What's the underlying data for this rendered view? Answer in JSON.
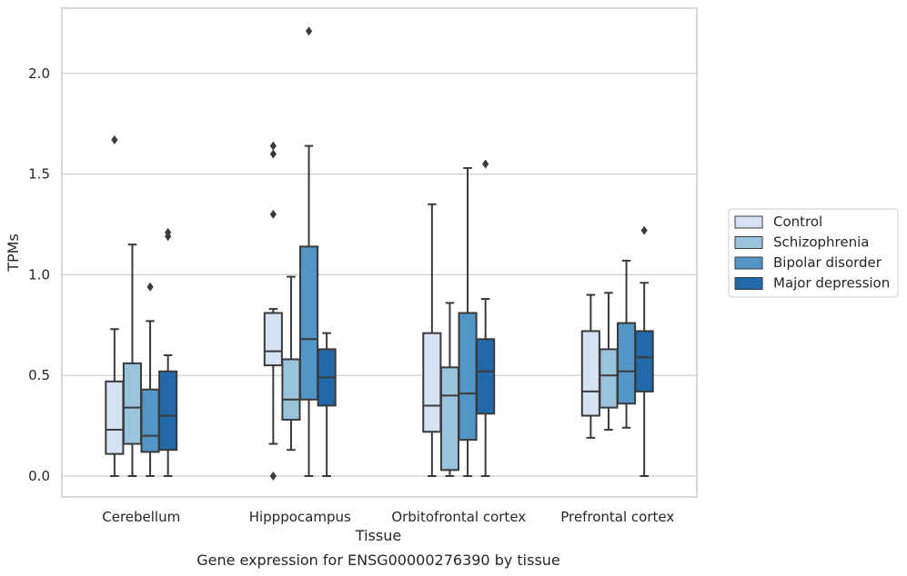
{
  "chart_data": {
    "type": "boxplot",
    "title": "",
    "xlabel": "Tissue",
    "ylabel": "TPMs",
    "caption": "Gene expression for ENSG00000276390 by tissue",
    "ylim": [
      -0.11,
      2.34
    ],
    "yticks": [
      "0.0",
      "0.5",
      "1.0",
      "1.5",
      "2.0"
    ],
    "grid": "horizontal",
    "legend_position": "right",
    "categories": [
      "Cerebellum",
      "Hipppocampus",
      "Orbitofrontal cortex",
      "Prefrontal cortex"
    ],
    "series": [
      {
        "name": "Control",
        "color": "#d4e2f1",
        "boxes": [
          {
            "whislo": 0.0,
            "q1": 0.11,
            "med": 0.23,
            "q3": 0.47,
            "whishi": 0.73,
            "fliers": [
              1.67
            ]
          },
          {
            "whislo": 0.16,
            "q1": 0.55,
            "med": 0.62,
            "q3": 0.81,
            "whishi": 0.83,
            "fliers": [
              0.0,
              1.3,
              1.6,
              1.64
            ]
          },
          {
            "whislo": 0.0,
            "q1": 0.22,
            "med": 0.35,
            "q3": 0.71,
            "whishi": 1.35,
            "fliers": []
          },
          {
            "whislo": 0.19,
            "q1": 0.3,
            "med": 0.42,
            "q3": 0.72,
            "whishi": 0.9,
            "fliers": []
          }
        ]
      },
      {
        "name": "Schizophrenia",
        "color": "#9ac3dc",
        "boxes": [
          {
            "whislo": 0.0,
            "q1": 0.16,
            "med": 0.34,
            "q3": 0.56,
            "whishi": 1.15,
            "fliers": []
          },
          {
            "whislo": 0.13,
            "q1": 0.28,
            "med": 0.38,
            "q3": 0.58,
            "whishi": 0.99,
            "fliers": []
          },
          {
            "whislo": 0.0,
            "q1": 0.03,
            "med": 0.4,
            "q3": 0.54,
            "whishi": 0.86,
            "fliers": []
          },
          {
            "whislo": 0.23,
            "q1": 0.34,
            "med": 0.5,
            "q3": 0.63,
            "whishi": 0.91,
            "fliers": []
          }
        ]
      },
      {
        "name": "Bipolar disorder",
        "color": "#5395c5",
        "boxes": [
          {
            "whislo": 0.0,
            "q1": 0.12,
            "med": 0.2,
            "q3": 0.43,
            "whishi": 0.77,
            "fliers": [
              0.94
            ]
          },
          {
            "whislo": 0.0,
            "q1": 0.38,
            "med": 0.68,
            "q3": 1.14,
            "whishi": 1.64,
            "fliers": [
              2.21
            ]
          },
          {
            "whislo": 0.0,
            "q1": 0.18,
            "med": 0.41,
            "q3": 0.81,
            "whishi": 1.53,
            "fliers": []
          },
          {
            "whislo": 0.24,
            "q1": 0.36,
            "med": 0.52,
            "q3": 0.76,
            "whishi": 1.07,
            "fliers": []
          }
        ]
      },
      {
        "name": "Major depression",
        "color": "#2269aa",
        "boxes": [
          {
            "whislo": 0.0,
            "q1": 0.13,
            "med": 0.3,
            "q3": 0.52,
            "whishi": 0.6,
            "fliers": [
              1.19,
              1.21
            ]
          },
          {
            "whislo": 0.0,
            "q1": 0.35,
            "med": 0.49,
            "q3": 0.63,
            "whishi": 0.71,
            "fliers": []
          },
          {
            "whislo": 0.0,
            "q1": 0.31,
            "med": 0.52,
            "q3": 0.68,
            "whishi": 0.88,
            "fliers": [
              1.55
            ]
          },
          {
            "whislo": 0.0,
            "q1": 0.42,
            "med": 0.59,
            "q3": 0.72,
            "whishi": 0.96,
            "fliers": [
              1.22
            ]
          }
        ]
      }
    ]
  }
}
